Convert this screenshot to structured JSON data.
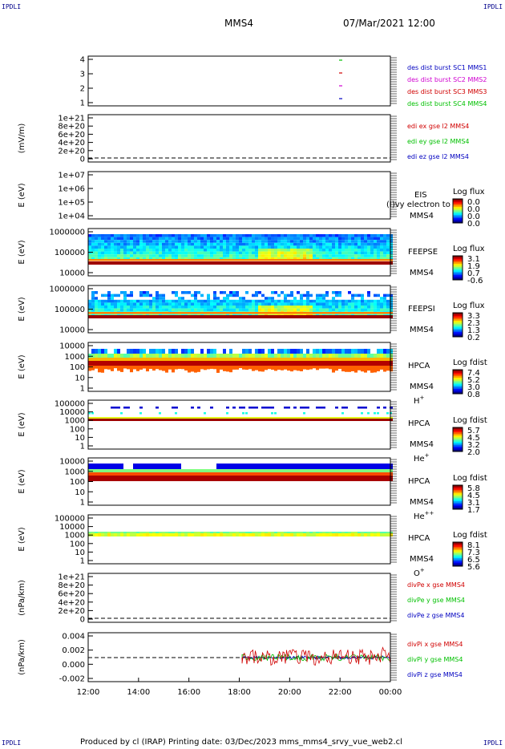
{
  "corner_labels": [
    "IPDLI",
    "IPDLI",
    "IPDLI",
    "IPDLI"
  ],
  "header": {
    "spacecraft": "MMS4",
    "datetime": "07/Mar/2021 12:00"
  },
  "footer": {
    "text": "Produced by cl (IRAP)   Printing date: 03/Dec/2023   mms_mms4_srvy_vue_web2.cl"
  },
  "colors": {
    "red": "#d00000",
    "green": "#00c000",
    "blue": "#0000c0",
    "magenta": "#d000d0"
  },
  "chart_data": {
    "type": "heatmap",
    "x_tick_labels": [
      "12:00",
      "14:00",
      "16:00",
      "18:00",
      "20:00",
      "22:00",
      "00:00"
    ],
    "x_range": [
      "12:00",
      "00:00"
    ],
    "panels": [
      {
        "id": "des-dist",
        "ylabel": "",
        "yticks": [
          "4",
          "3",
          "2",
          "1"
        ],
        "legend": [
          {
            "text": "des dist burst SC1 MMS1",
            "color": "blue"
          },
          {
            "text": "des dist burst SC2 MMS2",
            "color": "magenta"
          },
          {
            "text": "des dist burst SC3 MMS3",
            "color": "red"
          },
          {
            "text": "des dist burst SC4 MMS4",
            "color": "green"
          }
        ]
      },
      {
        "id": "edi",
        "ylabel": "(mV/m)",
        "yticks": [
          "1e+21",
          "8e+20",
          "6e+20",
          "4e+20",
          "2e+20",
          "0"
        ],
        "legend": [
          {
            "text": "edi ex gse l2 MMS4",
            "color": "red"
          },
          {
            "text": "edi ey gse l2 MMS4",
            "color": "green"
          },
          {
            "text": "edi ez gse l2 MMS4",
            "color": "blue"
          }
        ]
      },
      {
        "id": "eis",
        "ylabel": "E (eV)",
        "yticks": [
          "1e+07",
          "1e+06",
          "1e+05",
          "1e+04"
        ],
        "labels": [
          "EIS",
          "MMS4"
        ],
        "overlay": "(I)vy electron to",
        "cbar_title": "Log flux",
        "cbar_ticks": [
          "0.0",
          "0.0",
          "0.0",
          "0.0"
        ]
      },
      {
        "id": "feepse",
        "ylabel": "E (eV)",
        "yticks": [
          "1000000",
          "100000",
          "10000"
        ],
        "labels": [
          "FEEPSE",
          "MMS4"
        ],
        "cbar_title": "Log flux",
        "cbar_ticks": [
          "3.1",
          "1.9",
          "0.7",
          "-0.6"
        ]
      },
      {
        "id": "feepsi",
        "ylabel": "E (eV)",
        "yticks": [
          "1000000",
          "100000",
          "10000"
        ],
        "labels": [
          "FEEPSI",
          "MMS4"
        ],
        "cbar_title": "Log flux",
        "cbar_ticks": [
          "3.3",
          "2.3",
          "1.3",
          "0.2"
        ]
      },
      {
        "id": "hpca-h",
        "ylabel": "E (eV)",
        "yticks": [
          "10000",
          "1000",
          "100",
          "10",
          "1"
        ],
        "labels": [
          "HPCA",
          "MMS4"
        ],
        "species": "H",
        "species_sup": "+",
        "cbar_title": "Log fdist",
        "cbar_ticks": [
          "7.4",
          "5.2",
          "3.0",
          "0.8"
        ]
      },
      {
        "id": "hpca-he",
        "ylabel": "E (eV)",
        "yticks": [
          "100000",
          "10000",
          "1000",
          "100",
          "10",
          "1"
        ],
        "labels": [
          "HPCA",
          "MMS4"
        ],
        "species": "He",
        "species_sup": "+",
        "cbar_title": "Log fdist",
        "cbar_ticks": [
          "5.7",
          "4.5",
          "3.2",
          "2.0"
        ]
      },
      {
        "id": "hpca-he2",
        "ylabel": "E (eV)",
        "yticks": [
          "10000",
          "1000",
          "100",
          "10",
          "1"
        ],
        "labels": [
          "HPCA",
          "MMS4"
        ],
        "species": "He",
        "species_sup": "++",
        "cbar_title": "Log fdist",
        "cbar_ticks": [
          "5.8",
          "4.5",
          "3.1",
          "1.7"
        ]
      },
      {
        "id": "hpca-o",
        "ylabel": "E (eV)",
        "yticks": [
          "100000",
          "10000",
          "1000",
          "100",
          "10",
          "1"
        ],
        "labels": [
          "HPCA",
          "MMS4"
        ],
        "species": "O",
        "species_sup": "+",
        "cbar_title": "Log fdist",
        "cbar_ticks": [
          "8.1",
          "7.3",
          "6.5",
          "5.6"
        ]
      },
      {
        "id": "divpe",
        "ylabel": "(nPa/km)",
        "yticks": [
          "1e+21",
          "8e+20",
          "6e+20",
          "4e+20",
          "2e+20",
          "0"
        ],
        "legend": [
          {
            "text": "divPe x gse MMS4",
            "color": "red"
          },
          {
            "text": "divPe y gse MMS4",
            "color": "green"
          },
          {
            "text": "divPe z gse MMS4",
            "color": "blue"
          }
        ]
      },
      {
        "id": "divpi",
        "ylabel": "(nPa/km)",
        "yticks": [
          "0.004",
          "0.002",
          "0.000",
          "-0.002"
        ],
        "ylim": [
          -0.0035,
          0.004
        ],
        "legend": [
          {
            "text": "divPi x gse MMS4",
            "color": "red"
          },
          {
            "text": "divPi y gse MMS4",
            "color": "green"
          },
          {
            "text": "divPi z gse MMS4",
            "color": "blue"
          }
        ]
      }
    ]
  }
}
